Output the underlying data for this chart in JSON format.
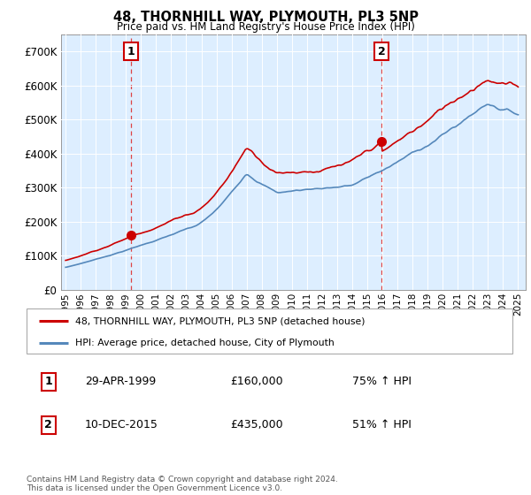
{
  "title": "48, THORNHILL WAY, PLYMOUTH, PL3 5NP",
  "subtitle": "Price paid vs. HM Land Registry's House Price Index (HPI)",
  "red_label": "48, THORNHILL WAY, PLYMOUTH, PL3 5NP (detached house)",
  "blue_label": "HPI: Average price, detached house, City of Plymouth",
  "annotation1_date": "29-APR-1999",
  "annotation1_price": "£160,000",
  "annotation1_hpi": "75% ↑ HPI",
  "annotation2_date": "10-DEC-2015",
  "annotation2_price": "£435,000",
  "annotation2_hpi": "51% ↑ HPI",
  "footer": "Contains HM Land Registry data © Crown copyright and database right 2024.\nThis data is licensed under the Open Government Licence v3.0.",
  "red_color": "#cc0000",
  "blue_color": "#5588bb",
  "bg_color": "#ddeeff",
  "dashed_color": "#dd4444",
  "ylim": [
    0,
    750000
  ],
  "yticks": [
    0,
    100000,
    200000,
    300000,
    400000,
    500000,
    600000,
    700000
  ],
  "ytick_labels": [
    "£0",
    "£100K",
    "£200K",
    "£300K",
    "£400K",
    "£500K",
    "£600K",
    "£700K"
  ],
  "marker1_year": 1999.33,
  "marker1_value": 160000,
  "marker2_year": 2015.95,
  "marker2_value": 435000,
  "vline1_year": 1999.33,
  "vline2_year": 2015.95,
  "xlim_left": 1994.7,
  "xlim_right": 2025.5
}
